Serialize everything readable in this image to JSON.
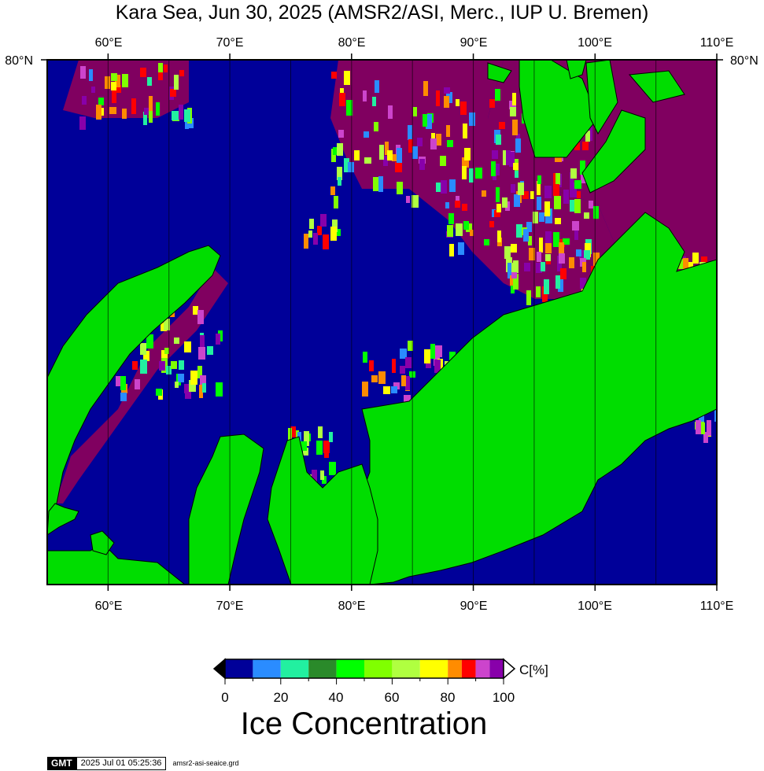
{
  "title": "Kara Sea, Jun 30, 2025 (AMSR2/ASI, Merc., IUP U. Bremen)",
  "map": {
    "longitude_labels": [
      "60°E",
      "70°E",
      "80°E",
      "90°E",
      "100°E",
      "110°E"
    ],
    "longitude_values": [
      60,
      70,
      80,
      90,
      100,
      110
    ],
    "latitude_label_left": "80°N",
    "latitude_label_right": "80°N",
    "lon_range": [
      55,
      110
    ],
    "colors": {
      "ocean_open": "#000099",
      "land": "#00dd00",
      "ice_high": "#800060",
      "coast": "#000000"
    }
  },
  "colorbar": {
    "tick_labels": [
      "0",
      "20",
      "40",
      "60",
      "80",
      "100"
    ],
    "unit_label": "C[%]",
    "title": "Ice Concentration",
    "colors": [
      "#000099",
      "#2a8cff",
      "#22f0a0",
      "#2a8a2a",
      "#00ff00",
      "#80ff00",
      "#b0ff40",
      "#ffff00",
      "#ff8c00",
      "#ff0000",
      "#cc44cc",
      "#8800aa"
    ]
  },
  "footer": {
    "logo": "GMT",
    "timestamp": "2025 Jul 01 05:25:36",
    "filename": "amsr2-asi-seaice.grd"
  }
}
